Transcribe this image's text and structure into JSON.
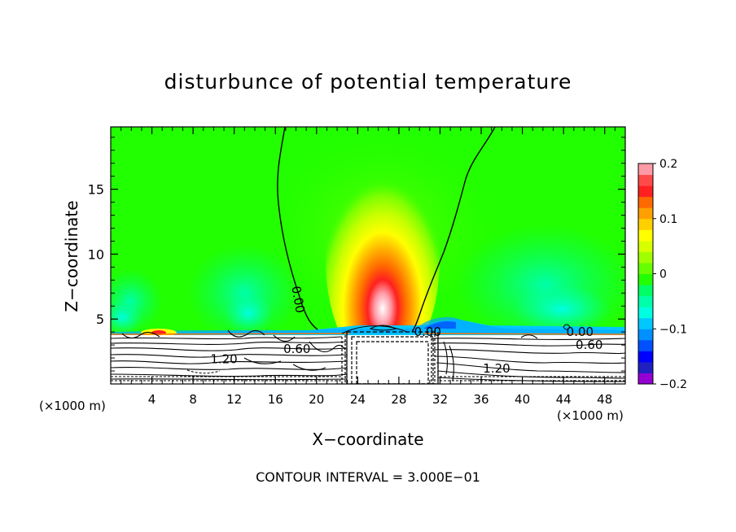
{
  "chart_data": {
    "type": "contour",
    "title": "disturbunce of potential temperature",
    "xlabel": "X−coordinate",
    "ylabel": "Z−coordinate",
    "x_unit_left": "(×1000 m)",
    "x_unit_right": "(×1000 m)",
    "xlim": [
      0,
      50
    ],
    "ylim": [
      0,
      19.8
    ],
    "x_ticks": [
      4,
      8,
      12,
      16,
      20,
      24,
      28,
      32,
      36,
      40,
      44,
      48
    ],
    "y_ticks": [
      5,
      10,
      15
    ],
    "colorbar": {
      "range": [
        -0.2,
        0.2
      ],
      "step": 0.02,
      "tick_labels": [
        {
          "value": 0.2,
          "label": "0.2"
        },
        {
          "value": 0.1,
          "label": "0.1"
        },
        {
          "value": 0,
          "label": "0"
        },
        {
          "value": -0.1,
          "label": "−0.1"
        },
        {
          "value": -0.2,
          "label": "−0.2"
        }
      ]
    },
    "contour_labels": [
      {
        "text": "0.00",
        "x": 18.2,
        "z": 6.5,
        "angle": 80
      },
      {
        "text": "0.00",
        "x": 30.8,
        "z": 4.0,
        "angle": 0
      },
      {
        "text": "0.00",
        "x": 45.6,
        "z": 4.0,
        "angle": 0
      },
      {
        "text": "0.60",
        "x": 46.5,
        "z": 3.0,
        "angle": 0
      },
      {
        "text": "0.60",
        "x": 18.1,
        "z": 2.7,
        "angle": 0
      },
      {
        "text": "1.20",
        "x": 11.0,
        "z": 1.9,
        "angle": 0
      },
      {
        "text": "1.20",
        "x": 37.5,
        "z": 1.2,
        "angle": 0
      }
    ],
    "footer": "CONTOUR INTERVAL = 3.000E−01",
    "grid": false,
    "legend": "right"
  }
}
